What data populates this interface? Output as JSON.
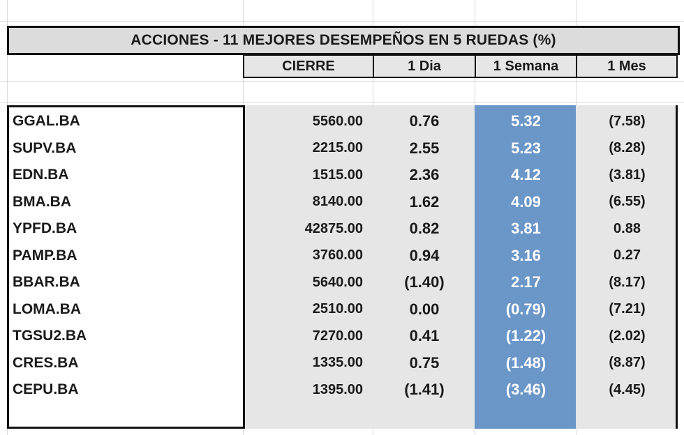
{
  "table": {
    "title": "ACCIONES   - 11  MEJORES DESEMPEÑOS EN 5 RUEDAS (%)",
    "headers": [
      "CIERRE",
      "1 Dia",
      "1 Semana",
      "1 Mes"
    ],
    "rows": [
      {
        "ticker": "GGAL.BA",
        "cierre": "5560.00",
        "dia": "0.76",
        "semana": "5.32",
        "mes": "(7.58)"
      },
      {
        "ticker": "SUPV.BA",
        "cierre": "2215.00",
        "dia": "2.55",
        "semana": "5.23",
        "mes": "(8.28)"
      },
      {
        "ticker": "EDN.BA",
        "cierre": "1515.00",
        "dia": "2.36",
        "semana": "4.12",
        "mes": "(3.81)"
      },
      {
        "ticker": "BMA.BA",
        "cierre": "8140.00",
        "dia": "1.62",
        "semana": "4.09",
        "mes": "(6.55)"
      },
      {
        "ticker": "YPFD.BA",
        "cierre": "42875.00",
        "dia": "0.82",
        "semana": "3.81",
        "mes": "0.88"
      },
      {
        "ticker": "PAMP.BA",
        "cierre": "3760.00",
        "dia": "0.94",
        "semana": "3.16",
        "mes": "0.27"
      },
      {
        "ticker": "BBAR.BA",
        "cierre": "5640.00",
        "dia": "(1.40)",
        "semana": "2.17",
        "mes": "(8.17)"
      },
      {
        "ticker": "LOMA.BA",
        "cierre": "2510.00",
        "dia": "0.00",
        "semana": "(0.79)",
        "mes": "(7.21)"
      },
      {
        "ticker": "TGSU2.BA",
        "cierre": "7270.00",
        "dia": "0.41",
        "semana": "(1.22)",
        "mes": "(2.02)"
      },
      {
        "ticker": "CRES.BA",
        "cierre": "1335.00",
        "dia": "0.75",
        "semana": "(1.48)",
        "mes": "(8.87)"
      },
      {
        "ticker": "CEPU.BA",
        "cierre": "1395.00",
        "dia": "(1.41)",
        "semana": "(3.46)",
        "mes": "(4.45)"
      }
    ]
  },
  "colors": {
    "highlight_column": "#6a96c8",
    "grey_cells": "#e6e6e6"
  }
}
